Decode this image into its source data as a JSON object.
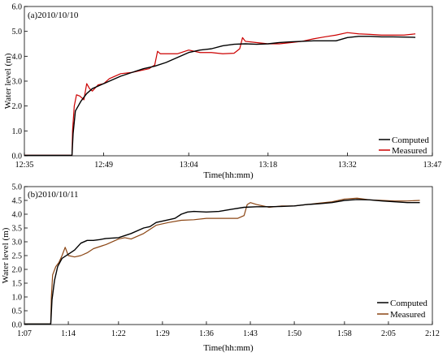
{
  "chart_data": [
    {
      "type": "line",
      "panel_label": "(a)2010/10/10",
      "xlabel": "Time(hh:mm)",
      "ylabel": "Water level (m)",
      "xlim_minutes": [
        755,
        827
      ],
      "ylim": [
        0,
        6
      ],
      "xticks": [
        {
          "label": "12:35",
          "value": 755
        },
        {
          "label": "12:49",
          "value": 769
        },
        {
          "label": "13:04",
          "value": 784
        },
        {
          "label": "13:18",
          "value": 798
        },
        {
          "label": "13:32",
          "value": 812
        },
        {
          "label": "13:47",
          "value": 827
        }
      ],
      "yticks": [
        "0.0",
        "1.0",
        "2.0",
        "3.0",
        "4.0",
        "5.0",
        "6.0"
      ],
      "legend_position": "bottom-right",
      "series": [
        {
          "name": "Computed",
          "color": "#000000",
          "x": [
            755,
            763.4,
            763.6,
            764,
            765,
            766,
            767,
            768,
            770,
            772,
            774,
            776,
            778,
            780,
            782,
            784,
            786,
            788,
            790,
            792,
            794,
            796,
            798,
            800,
            802,
            804,
            806,
            808,
            810,
            812,
            814,
            816,
            818,
            820,
            822,
            824
          ],
          "y": [
            0.02,
            0.02,
            0.9,
            1.8,
            2.2,
            2.5,
            2.7,
            2.8,
            3.0,
            3.2,
            3.35,
            3.5,
            3.6,
            3.75,
            3.95,
            4.15,
            4.25,
            4.3,
            4.42,
            4.48,
            4.5,
            4.48,
            4.5,
            4.55,
            4.58,
            4.6,
            4.62,
            4.62,
            4.62,
            4.75,
            4.8,
            4.8,
            4.78,
            4.78,
            4.77,
            4.76
          ]
        },
        {
          "name": "Measured",
          "color": "#cc0000",
          "x": [
            755,
            763.4,
            763.5,
            763.8,
            764.2,
            764.8,
            765.5,
            766,
            766.5,
            767,
            768,
            769,
            770,
            772,
            774,
            776,
            777,
            778,
            778.5,
            779,
            780,
            782,
            784,
            786,
            788,
            790,
            792,
            793,
            793.5,
            794,
            796,
            798,
            800,
            802,
            804,
            806,
            808,
            810,
            812,
            814,
            816,
            818,
            820,
            822,
            824
          ],
          "y": [
            0.02,
            0.02,
            1.0,
            2.0,
            2.45,
            2.4,
            2.25,
            2.9,
            2.7,
            2.6,
            2.85,
            2.9,
            3.1,
            3.3,
            3.35,
            3.45,
            3.5,
            3.65,
            4.2,
            4.1,
            4.1,
            4.1,
            4.25,
            4.15,
            4.15,
            4.1,
            4.12,
            4.3,
            4.75,
            4.6,
            4.55,
            4.5,
            4.5,
            4.55,
            4.6,
            4.7,
            4.78,
            4.85,
            4.95,
            4.9,
            4.88,
            4.85,
            4.85,
            4.85,
            4.9
          ]
        }
      ]
    },
    {
      "type": "line",
      "panel_label": "(b)2010/10/11",
      "xlabel": "Time(hh:mm)",
      "ylabel": "Water level (m)",
      "xlim_minutes": [
        67,
        132
      ],
      "ylim": [
        0,
        5
      ],
      "xticks": [
        {
          "label": "1:07",
          "value": 67
        },
        {
          "label": "1:14",
          "value": 74
        },
        {
          "label": "1:22",
          "value": 82
        },
        {
          "label": "1:29",
          "value": 89
        },
        {
          "label": "1:36",
          "value": 96
        },
        {
          "label": "1:43",
          "value": 103
        },
        {
          "label": "1:50",
          "value": 110
        },
        {
          "label": "1:58",
          "value": 118
        },
        {
          "label": "2:05",
          "value": 125
        },
        {
          "label": "2:12",
          "value": 132
        }
      ],
      "yticks": [
        "0.0",
        "0.5",
        "1.0",
        "1.5",
        "2.0",
        "2.5",
        "3.0",
        "3.5",
        "4.0",
        "4.5",
        "5.0"
      ],
      "legend_position": "bottom-right",
      "series": [
        {
          "name": "Computed",
          "color": "#000000",
          "x": [
            67,
            71.2,
            71.4,
            71.8,
            72.3,
            73,
            74,
            75,
            76,
            77,
            78,
            79,
            80,
            82,
            84,
            86,
            87,
            88,
            90,
            91,
            92,
            93,
            94,
            96,
            98,
            100,
            102,
            104,
            106,
            108,
            110,
            112,
            114,
            116,
            118,
            120,
            122,
            124,
            126,
            128,
            130
          ],
          "y": [
            0.02,
            0.02,
            0.9,
            1.6,
            2.1,
            2.4,
            2.55,
            2.7,
            2.95,
            3.05,
            3.05,
            3.08,
            3.12,
            3.15,
            3.3,
            3.5,
            3.55,
            3.7,
            3.8,
            3.85,
            4.0,
            4.08,
            4.1,
            4.08,
            4.1,
            4.18,
            4.25,
            4.27,
            4.27,
            4.28,
            4.3,
            4.35,
            4.38,
            4.42,
            4.5,
            4.53,
            4.52,
            4.48,
            4.45,
            4.42,
            4.42
          ]
        },
        {
          "name": "Measured",
          "color": "#8b4513",
          "x": [
            67,
            71.2,
            71.3,
            71.5,
            72,
            72.5,
            73,
            73.5,
            74,
            75,
            76,
            77,
            78,
            80,
            82,
            83,
            84,
            86,
            88,
            90,
            92,
            94,
            96,
            98,
            100,
            101,
            102,
            102.5,
            103,
            104,
            106,
            108,
            110,
            112,
            114,
            116,
            118,
            120,
            122,
            124,
            126,
            128,
            130
          ],
          "y": [
            0.02,
            0.02,
            1.0,
            1.8,
            2.1,
            2.25,
            2.5,
            2.8,
            2.5,
            2.45,
            2.5,
            2.6,
            2.75,
            2.9,
            3.1,
            3.15,
            3.1,
            3.3,
            3.6,
            3.7,
            3.78,
            3.8,
            3.85,
            3.85,
            3.85,
            3.85,
            3.95,
            4.35,
            4.42,
            4.35,
            4.25,
            4.3,
            4.3,
            4.35,
            4.4,
            4.45,
            4.55,
            4.58,
            4.52,
            4.5,
            4.48,
            4.48,
            4.5
          ]
        }
      ]
    }
  ]
}
